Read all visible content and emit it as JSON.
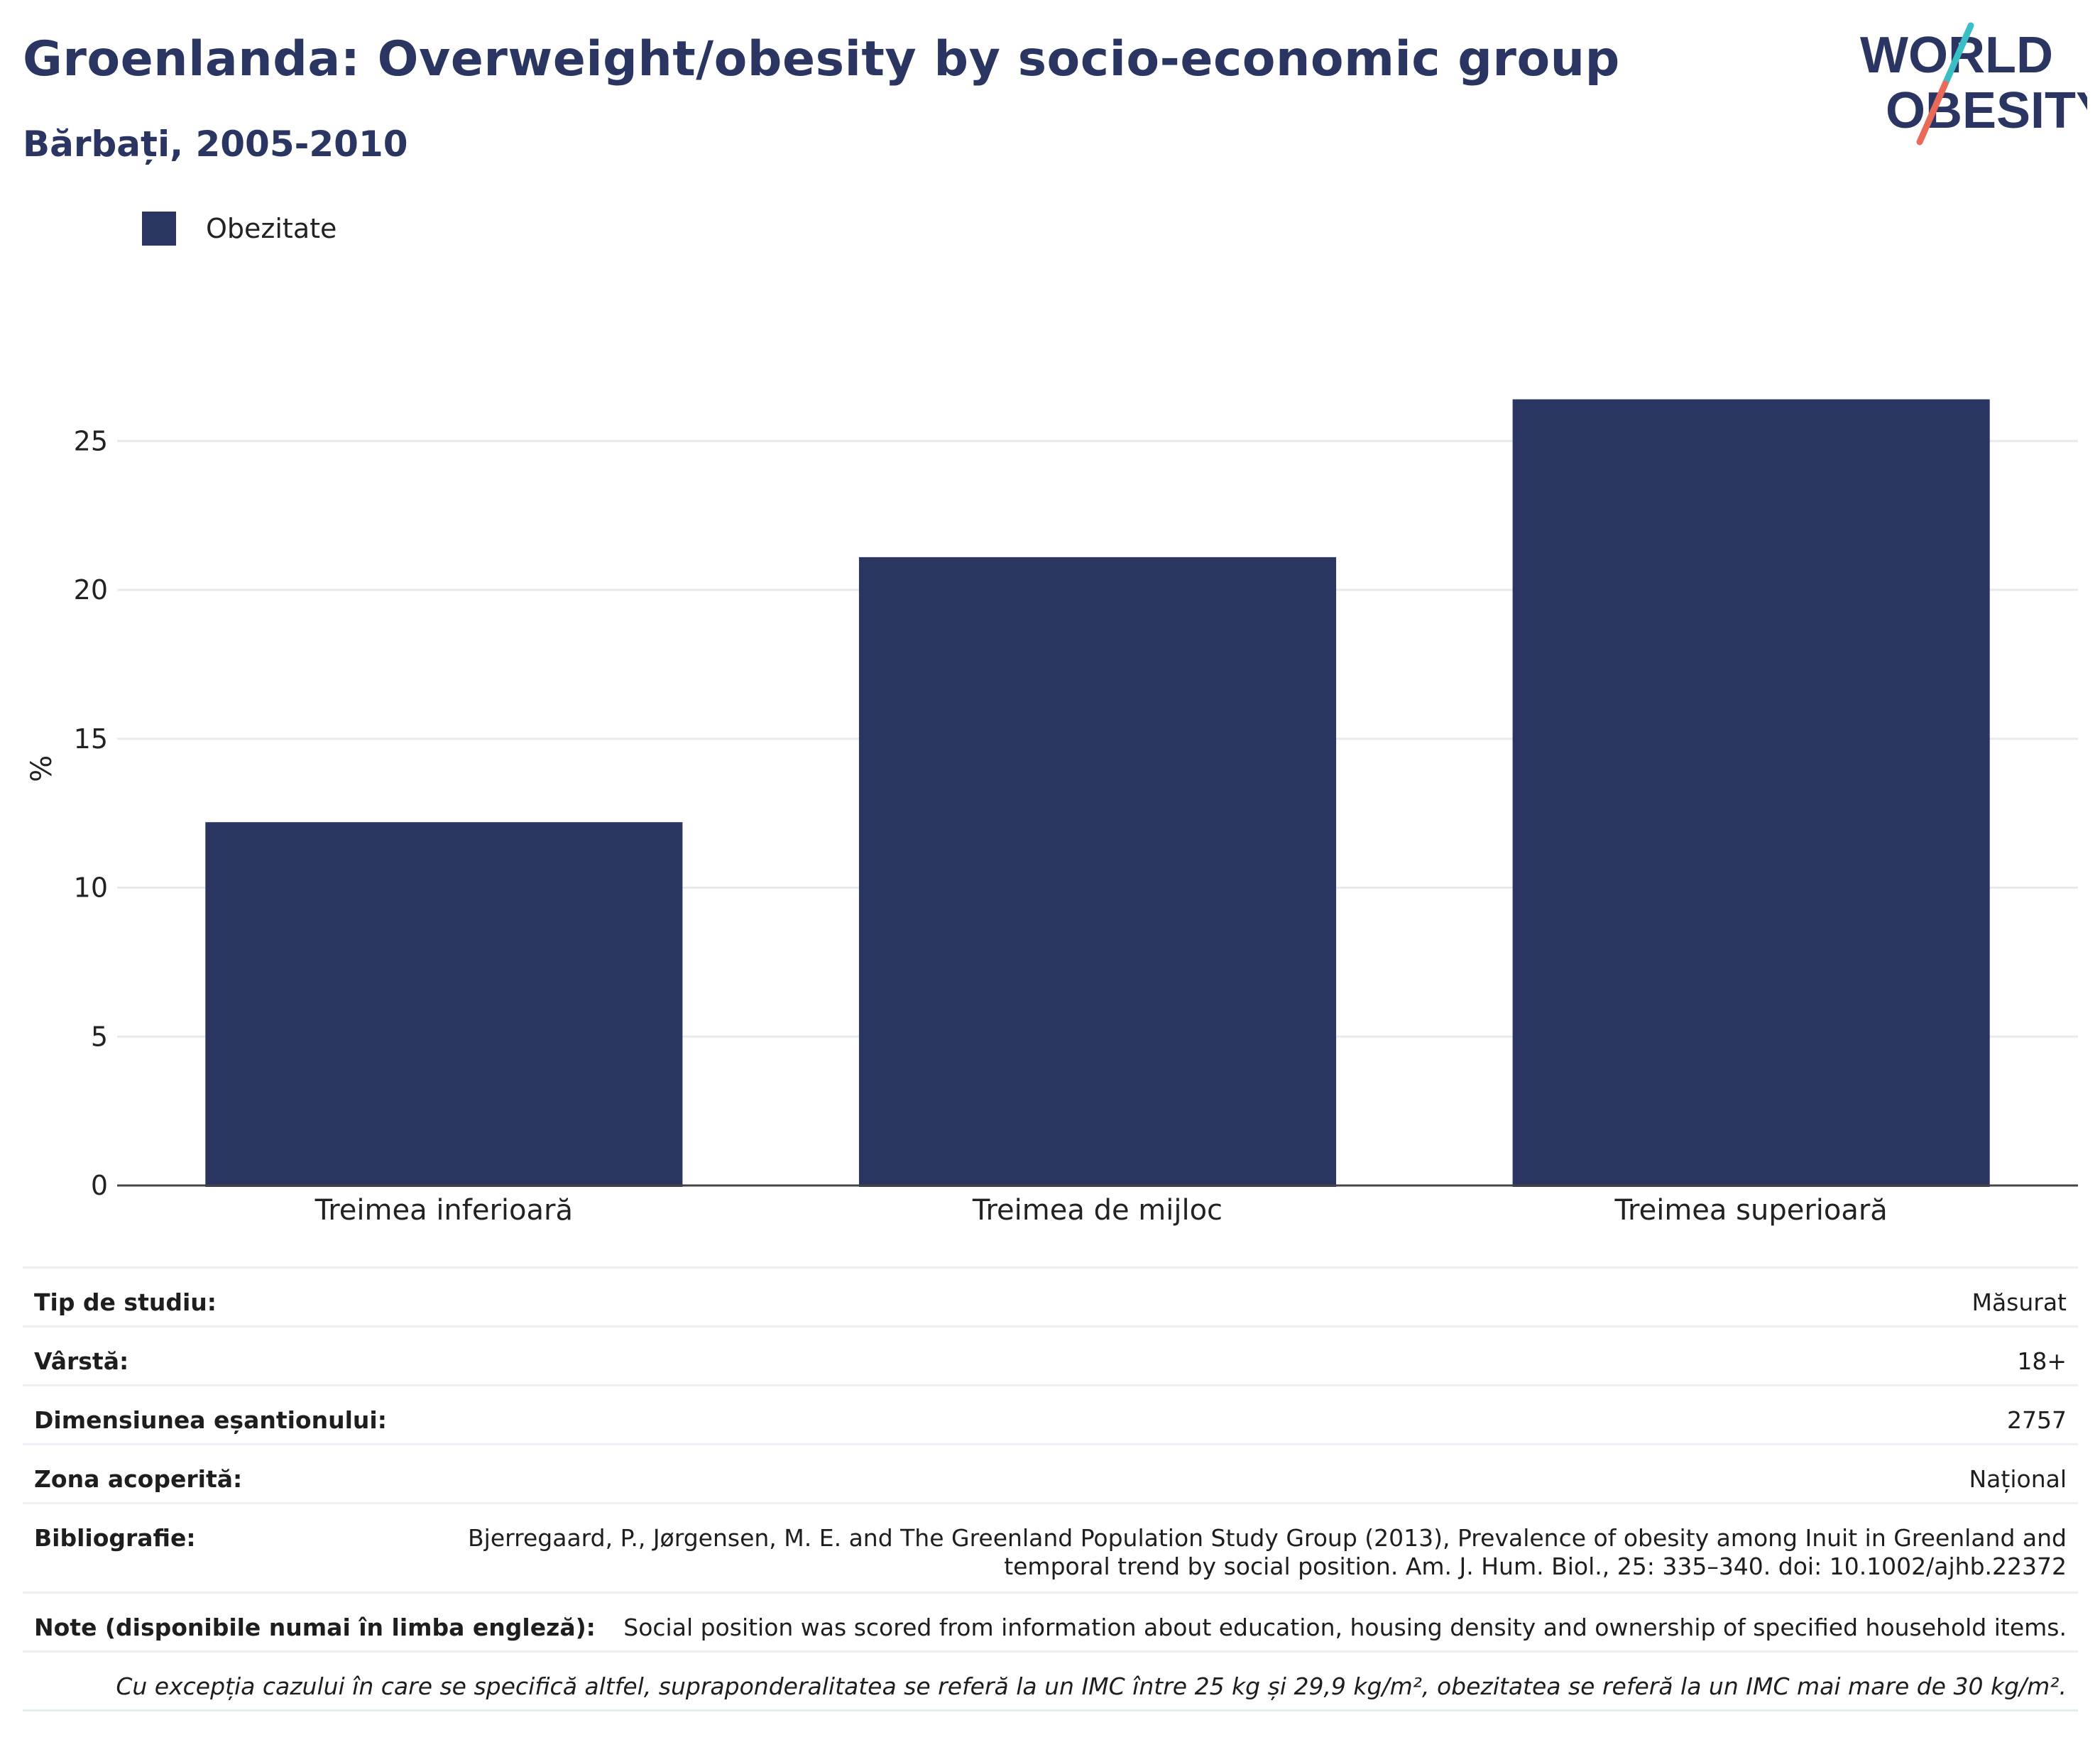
{
  "header": {
    "title": "Groenlanda: Overweight/obesity by socio-economic group",
    "subtitle": "Bărbați, 2005-2010"
  },
  "logo": {
    "line1": "WORLD",
    "line2": "OBESITY"
  },
  "legend": {
    "label": "Obezitate",
    "color": "#2a3562"
  },
  "chart_data": {
    "type": "bar",
    "categories": [
      "Treimea inferioară",
      "Treimea de mijloc",
      "Treimea superioară"
    ],
    "series": [
      {
        "name": "Obezitate",
        "values": [
          12.2,
          21.1,
          26.4
        ],
        "color": "#2a3562"
      }
    ],
    "ylabel": "%",
    "ylim": [
      0,
      29
    ],
    "yticks": [
      0,
      5,
      10,
      15,
      20,
      25
    ],
    "grid": true,
    "legend_position": "top-left"
  },
  "info": {
    "study_type": {
      "label": "Tip de studiu:",
      "value": "Măsurat"
    },
    "age": {
      "label": "Vârstă:",
      "value": "18+"
    },
    "sample_size": {
      "label": "Dimensiunea eșantionului:",
      "value": "2757"
    },
    "area": {
      "label": "Zona acoperită:",
      "value": "Național"
    },
    "bibliography": {
      "label": "Bibliografie:",
      "line1": "Bjerregaard, P., Jørgensen, M. E. and The Greenland Population Study Group (2013), Prevalence of obesity among Inuit in Greenland and",
      "line2": "temporal trend by social position. Am. J. Hum. Biol., 25: 335–340. doi: 10.1002/ajhb.22372"
    },
    "notes": {
      "label": "Note (disponibile numai în limba engleză):",
      "value": "Social position was scored from information about education, housing density and ownership of specified household items."
    },
    "footnote": "Cu excepția cazului în care se specifică altfel, supraponderalitatea se referă la un IMC între 25 kg și 29,9 kg/m², obezitatea se referă la un IMC mai mare de 30 kg/m²."
  }
}
